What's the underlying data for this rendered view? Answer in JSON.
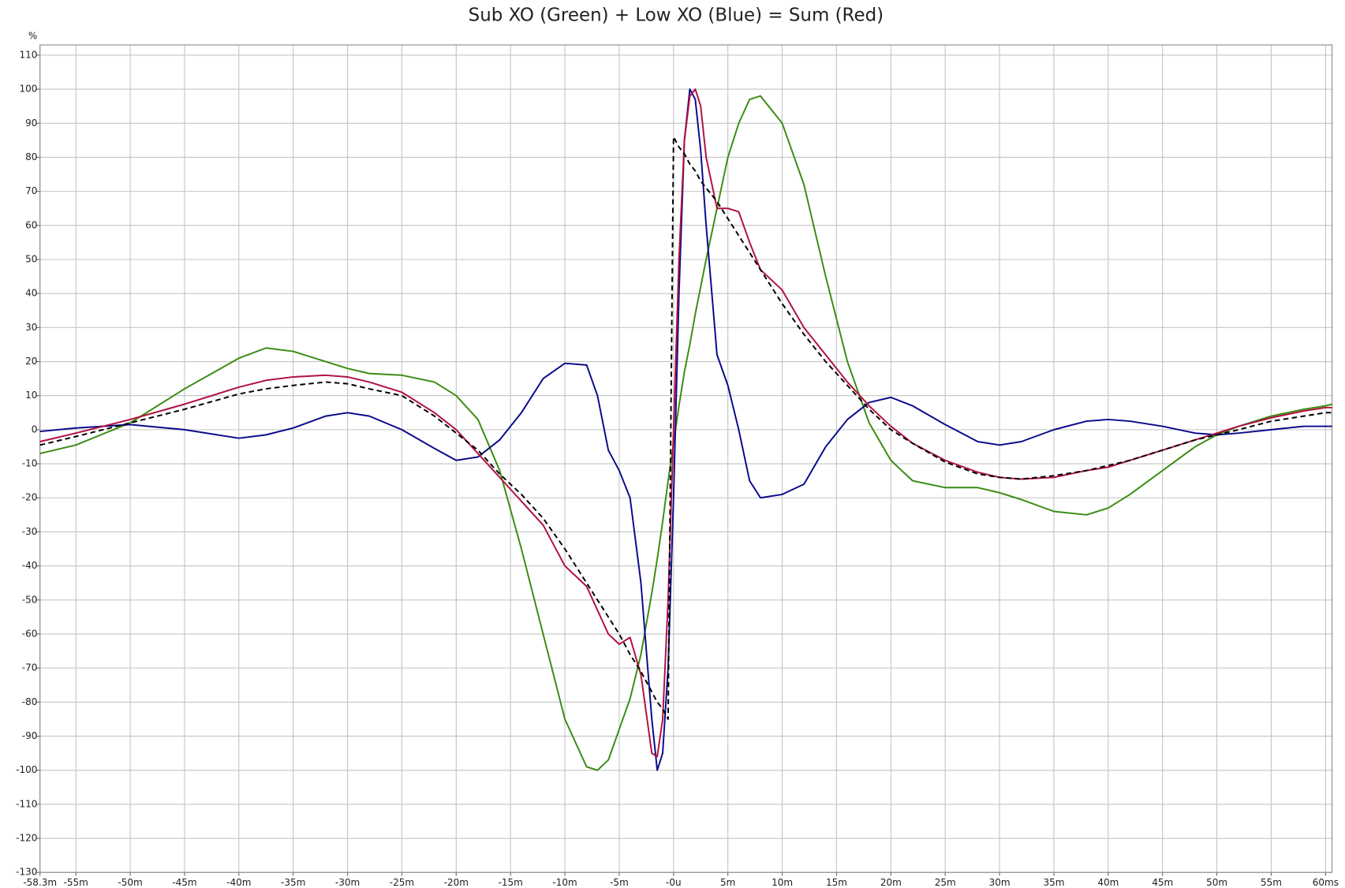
{
  "chart_data": {
    "type": "line",
    "title": "Sub XO (Green) + Low XO (Blue) = Sum (Red)",
    "y_label": "%",
    "grid": true,
    "xlim": [
      -58.3,
      60.6
    ],
    "ylim": [
      -130,
      113
    ],
    "xticks": [
      {
        "value": -58.3,
        "label": "-58.3m"
      },
      {
        "value": -55,
        "label": "-55m"
      },
      {
        "value": -50,
        "label": "-50m"
      },
      {
        "value": -45,
        "label": "-45m"
      },
      {
        "value": -40,
        "label": "-40m"
      },
      {
        "value": -35,
        "label": "-35m"
      },
      {
        "value": -30,
        "label": "-30m"
      },
      {
        "value": -25,
        "label": "-25m"
      },
      {
        "value": -20,
        "label": "-20m"
      },
      {
        "value": -15,
        "label": "-15m"
      },
      {
        "value": -10,
        "label": "-10m"
      },
      {
        "value": -5,
        "label": "-5m"
      },
      {
        "value": 0,
        "label": "-0u"
      },
      {
        "value": 5,
        "label": "5m"
      },
      {
        "value": 10,
        "label": "10m"
      },
      {
        "value": 15,
        "label": "15m"
      },
      {
        "value": 20,
        "label": "20m"
      },
      {
        "value": 25,
        "label": "25m"
      },
      {
        "value": 30,
        "label": "30m"
      },
      {
        "value": 35,
        "label": "35m"
      },
      {
        "value": 40,
        "label": "40m"
      },
      {
        "value": 45,
        "label": "45m"
      },
      {
        "value": 50,
        "label": "50m"
      },
      {
        "value": 55,
        "label": "55m"
      },
      {
        "value": 60,
        "label": "60ms"
      }
    ],
    "yticks": [
      -130,
      -120,
      -110,
      -100,
      -90,
      -80,
      -70,
      -60,
      -50,
      -40,
      -30,
      -20,
      -10,
      0,
      10,
      20,
      30,
      40,
      50,
      60,
      70,
      80,
      90,
      100,
      110
    ],
    "x": [
      -58.3,
      -55,
      -50,
      -45,
      -40,
      -37.5,
      -35,
      -32,
      -30,
      -28,
      -25,
      -22,
      -20,
      -18,
      -16,
      -14,
      -12,
      -10,
      -8,
      -7,
      -6,
      -5,
      -4,
      -3,
      -2,
      -1.5,
      -1,
      -0.5,
      0,
      0.5,
      1,
      1.5,
      2,
      2.5,
      3,
      4,
      5,
      6,
      7,
      8,
      10,
      12,
      14,
      16,
      18,
      20,
      22,
      25,
      28,
      30,
      32,
      35,
      38,
      40,
      42,
      45,
      48,
      50,
      52,
      55,
      58,
      60,
      60.6
    ],
    "series": [
      {
        "color": "#3a8c12",
        "line_style": "solid",
        "values": [
          -7,
          -4.5,
          2,
          12,
          21,
          24,
          23,
          20,
          18,
          16.5,
          16,
          14,
          10,
          3,
          -12,
          -35,
          -60,
          -85,
          -99,
          -100,
          -97,
          -88,
          -79,
          -66,
          -48,
          -38,
          -27,
          -15,
          -4,
          7,
          17,
          25,
          34,
          42,
          50,
          65,
          80,
          90,
          97,
          98,
          90,
          72,
          45,
          20,
          2,
          -9,
          -15,
          -17,
          -17,
          -18.5,
          -20.5,
          -24,
          -25,
          -23,
          -19,
          -12,
          -5,
          -1.5,
          1,
          4,
          6,
          7,
          7.5
        ]
      },
      {
        "color": "#0a0a8c",
        "line_style": "solid",
        "values": [
          -0.5,
          0.5,
          1.5,
          0,
          -2.5,
          -1.5,
          0.5,
          4,
          5,
          4,
          0,
          -5.5,
          -9,
          -8,
          -3,
          5,
          15,
          19.5,
          19,
          10,
          -6,
          -12,
          -20,
          -45,
          -85,
          -100,
          -95,
          -70,
          -20,
          40,
          85,
          100,
          97,
          82,
          60,
          22,
          13,
          0,
          -15,
          -20,
          -19,
          -16,
          -5,
          3,
          8,
          9.5,
          7,
          1.5,
          -3.5,
          -4.5,
          -3.5,
          0,
          2.5,
          3,
          2.5,
          1,
          -1,
          -1.5,
          -1,
          0,
          1,
          1,
          1
        ]
      },
      {
        "color": "#b0103e",
        "line_style": "solid",
        "values": [
          -3.5,
          -1,
          3,
          7.5,
          12.5,
          14.5,
          15.5,
          16,
          15.5,
          14,
          11,
          5,
          0,
          -7,
          -14,
          -21,
          -28,
          -40,
          -46,
          -53,
          -60,
          -63,
          -61,
          -72,
          -95,
          -96,
          -85,
          -50,
          0,
          50,
          85,
          98,
          100,
          95,
          80,
          65,
          65,
          64,
          55,
          47,
          41,
          30,
          22,
          14,
          7,
          1,
          -4,
          -9,
          -12.5,
          -14,
          -14.5,
          -14,
          -12,
          -11,
          -9,
          -6,
          -3,
          -1,
          1,
          3.5,
          5.5,
          6.5,
          6.5
        ]
      },
      {
        "color": "#000000",
        "line_style": "dashed",
        "values": [
          -4.5,
          -2,
          2,
          6,
          10.5,
          12,
          13,
          14,
          13.5,
          12,
          10,
          4,
          -1,
          -6,
          -13,
          -19,
          -26,
          -35,
          -45,
          -50,
          -55,
          -60,
          -66,
          -71,
          -77,
          -80,
          -82,
          -85,
          86,
          83,
          81,
          78,
          76,
          73,
          71,
          67,
          62,
          57,
          52,
          47,
          37,
          28,
          20,
          13,
          6,
          0,
          -4,
          -9.5,
          -13,
          -14,
          -14.5,
          -13.5,
          -12,
          -10.5,
          -9,
          -6,
          -3,
          -1.5,
          0,
          2.5,
          4,
          5,
          5
        ]
      }
    ]
  }
}
